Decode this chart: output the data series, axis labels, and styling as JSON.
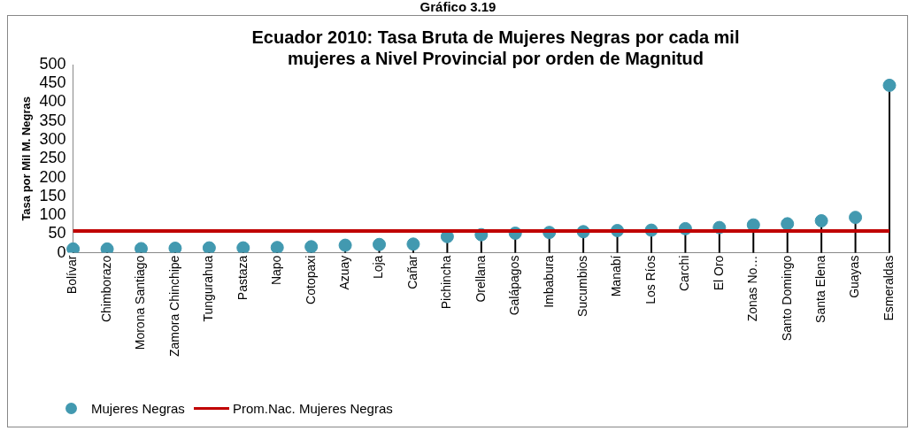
{
  "chart_data": {
    "type": "lollipop",
    "title": "Gráfico 3.19",
    "subtitle": "Ecuador 2010: Tasa Bruta de Mujeres Negras por cada mil mujeres a Nivel Provincial por orden de Magnitud",
    "ylabel": "Tasa por Mil M. Negras",
    "categories": [
      "Bolívar",
      "Chimborazo",
      "Morona Santiago",
      "Zamora Chinchipe",
      "Tungurahua",
      "Pastaza",
      "Napo",
      "Cotopaxi",
      "Azuay",
      "Loja",
      "Cañar",
      "Pichincha",
      "Orellana",
      "Galápagos",
      "Imbabura",
      "Sucumbios",
      "Manabí",
      "Los Ríos",
      "Carchi",
      "El Oro",
      "Zonas No…",
      "Santo Domingo",
      "Santa Elena",
      "Guayas",
      "Esmeraldas"
    ],
    "series": [
      {
        "name": "Mujeres Negras",
        "color": "#4299b0",
        "values": [
          10,
          10,
          11,
          12,
          13,
          13,
          14,
          16,
          20,
          22,
          23,
          43,
          48,
          52,
          54,
          56,
          59,
          60,
          64,
          67,
          74,
          77,
          85,
          94,
          445
        ]
      }
    ],
    "ref_lines": [
      {
        "axis": "y",
        "value": 58,
        "label": "Prom.Nac. Mujeres Negras",
        "color": "#c00000"
      }
    ],
    "ylim": [
      0,
      500
    ],
    "yticks": [
      0,
      50,
      100,
      150,
      200,
      250,
      300,
      350,
      400,
      450,
      500
    ],
    "grid": false,
    "legend": "bottom left",
    "marker": "circle"
  }
}
